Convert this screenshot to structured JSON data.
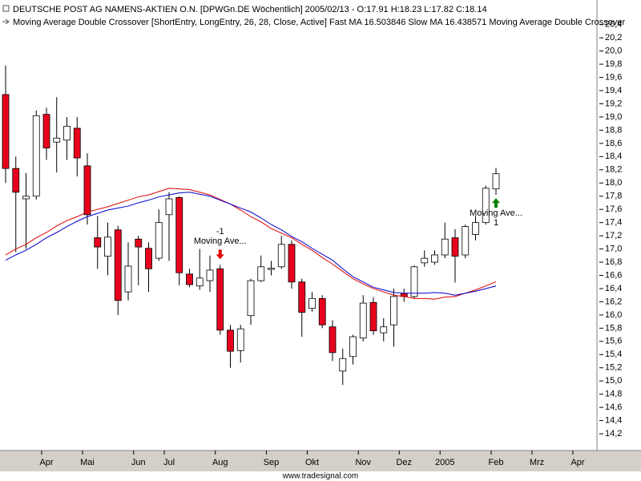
{
  "chart_data": {
    "type": "candlestick",
    "title": "DEUTSCHE POST AG NAMENS-AKTIEN O.N. [DPWGn.DE  Wöchentlich] 2005/02/13 - O:17.91 H:18.23 L:17.82 C:18.14",
    "subtitle": "Moving Average Double Crossover [ShortEntry, LongEntry, 26, 28, Close, Active] Fast MA 16.503846 Slow MA 16.438571 Moving Average Double Crossover",
    "footer": "www.tradesignal.com",
    "categories": [
      null,
      null,
      null,
      null,
      "Apr",
      null,
      null,
      null,
      "Mai",
      null,
      null,
      null,
      null,
      "Jun",
      null,
      null,
      "Jul",
      null,
      null,
      null,
      null,
      "Aug",
      null,
      null,
      null,
      null,
      "Sep",
      null,
      null,
      null,
      "Okt",
      null,
      null,
      null,
      null,
      "Nov",
      null,
      null,
      null,
      "Dez",
      null,
      null,
      null,
      "2005",
      null,
      null,
      null,
      null,
      "Feb",
      null,
      null,
      null,
      "Mrz",
      null,
      null,
      null,
      "Apr",
      null
    ],
    "open": [
      19.34,
      18.22,
      17.76,
      17.8,
      19.04,
      18.62,
      18.65,
      18.83,
      18.26,
      17.17,
      16.89,
      17.29,
      16.35,
      17.15,
      17.01,
      16.86,
      17.52,
      17.78,
      16.62,
      16.44,
      16.52,
      16.7,
      15.77,
      15.46,
      15.99,
      16.52,
      16.69,
      16.73,
      17.07,
      16.5,
      16.1,
      16.25,
      15.82,
      15.15,
      15.37,
      15.65,
      16.19,
      15.73,
      15.85,
      16.33,
      16.28,
      16.79,
      16.8,
      16.91,
      17.17,
      16.91,
      17.22,
      17.4,
      17.91,
      null,
      null,
      null,
      null,
      null,
      null,
      null,
      null,
      null
    ],
    "high": [
      19.78,
      18.4,
      18.15,
      19.1,
      19.14,
      19.3,
      19.0,
      19.0,
      18.45,
      17.5,
      17.4,
      17.35,
      17.1,
      17.2,
      17.1,
      17.6,
      17.86,
      17.8,
      16.7,
      17.0,
      16.9,
      16.76,
      15.85,
      15.85,
      16.55,
      16.9,
      16.82,
      17.2,
      17.13,
      16.55,
      16.35,
      16.3,
      15.92,
      15.49,
      15.7,
      16.3,
      16.27,
      15.95,
      16.4,
      16.4,
      16.75,
      16.98,
      16.98,
      17.4,
      17.3,
      17.37,
      17.5,
      17.96,
      18.23,
      null,
      null,
      null,
      null,
      null,
      null,
      null,
      null,
      null
    ],
    "low": [
      18.0,
      16.95,
      17.0,
      17.75,
      18.35,
      18.16,
      18.35,
      18.1,
      17.37,
      16.7,
      16.6,
      16.0,
      16.22,
      16.45,
      16.35,
      16.82,
      16.82,
      16.45,
      16.42,
      16.38,
      16.35,
      15.7,
      15.2,
      15.28,
      15.85,
      16.5,
      16.6,
      16.7,
      16.4,
      15.67,
      16.05,
      15.8,
      15.3,
      14.94,
      15.25,
      15.6,
      15.7,
      15.6,
      15.52,
      16.2,
      16.25,
      16.73,
      16.76,
      16.86,
      16.49,
      16.86,
      17.13,
      17.37,
      17.82,
      null,
      null,
      null,
      null,
      null,
      null,
      null,
      null,
      null
    ],
    "close": [
      18.22,
      17.86,
      17.8,
      19.02,
      18.53,
      18.68,
      18.86,
      18.38,
      17.52,
      17.03,
      17.18,
      16.22,
      16.74,
      17.03,
      16.7,
      17.4,
      17.76,
      16.64,
      16.46,
      16.56,
      16.68,
      15.77,
      15.45,
      15.79,
      16.52,
      16.73,
      16.71,
      17.07,
      16.5,
      16.04,
      16.25,
      15.85,
      15.43,
      15.34,
      15.67,
      16.18,
      15.76,
      15.82,
      16.28,
      16.28,
      16.73,
      16.86,
      16.91,
      17.15,
      16.89,
      17.34,
      17.4,
      17.92,
      18.14,
      null,
      null,
      null,
      null,
      null,
      null,
      null,
      null,
      null
    ],
    "up_color": "#ffffff",
    "down_color": "#e8001c",
    "series": [
      {
        "color": "#e00000",
        "values": [
          16.91,
          17.0,
          17.07,
          17.17,
          17.25,
          17.35,
          17.43,
          17.49,
          17.56,
          17.6,
          17.64,
          17.69,
          17.74,
          17.79,
          17.82,
          17.87,
          17.92,
          17.91,
          17.9,
          17.86,
          17.82,
          17.75,
          17.68,
          17.59,
          17.49,
          17.41,
          17.31,
          17.24,
          17.17,
          17.07,
          16.98,
          16.87,
          16.77,
          16.66,
          16.55,
          16.47,
          16.4,
          16.35,
          16.3,
          16.28,
          16.25,
          16.25,
          16.24,
          16.27,
          16.28,
          16.33,
          16.38,
          16.44,
          16.503846,
          null,
          null,
          null,
          null,
          null,
          null,
          null,
          null,
          null
        ]
      },
      {
        "color": "#0000cc",
        "values": [
          16.83,
          16.91,
          16.98,
          17.07,
          17.17,
          17.25,
          17.34,
          17.42,
          17.49,
          17.54,
          17.59,
          17.62,
          17.65,
          17.7,
          17.74,
          17.79,
          17.82,
          17.85,
          17.86,
          17.83,
          17.8,
          17.74,
          17.68,
          17.62,
          17.56,
          17.47,
          17.37,
          17.29,
          17.19,
          17.11,
          17.01,
          16.92,
          16.83,
          16.7,
          16.58,
          16.5,
          16.42,
          16.38,
          16.34,
          16.33,
          16.33,
          16.33,
          16.34,
          16.33,
          16.3,
          16.33,
          16.36,
          16.4,
          16.438571,
          null,
          null,
          null,
          null,
          null,
          null,
          null,
          null,
          null
        ]
      }
    ],
    "signals": [
      {
        "label": "Moving Ave...",
        "quantity": "-1",
        "direction": "short"
      },
      {
        "label": "Moving Ave...",
        "quantity": "1",
        "direction": "long"
      }
    ],
    "ylim": [
      13.97,
      20.53
    ],
    "yticks": [
      {
        "value": 14.2,
        "label": "14,2"
      },
      {
        "value": 14.4,
        "label": "14,4"
      },
      {
        "value": 14.6,
        "label": "14,6"
      },
      {
        "value": 14.8,
        "label": "14,8"
      },
      {
        "value": 15.0,
        "label": "15,0"
      },
      {
        "value": 15.2,
        "label": "15,2"
      },
      {
        "value": 15.4,
        "label": "15,4"
      },
      {
        "value": 15.6,
        "label": "15,6"
      },
      {
        "value": 15.8,
        "label": "15,8"
      },
      {
        "value": 16.0,
        "label": "16,0"
      },
      {
        "value": 16.2,
        "label": "16,2"
      },
      {
        "value": 16.4,
        "label": "16,4"
      },
      {
        "value": 16.6,
        "label": "16,6"
      },
      {
        "value": 16.8,
        "label": "16,8"
      },
      {
        "value": 17.0,
        "label": "17,0"
      },
      {
        "value": 17.2,
        "label": "17,2"
      },
      {
        "value": 17.4,
        "label": "17,4"
      },
      {
        "value": 17.6,
        "label": "17,6"
      },
      {
        "value": 17.8,
        "label": "17,8"
      },
      {
        "value": 18.0,
        "label": "18,0"
      },
      {
        "value": 18.2,
        "label": "18,2"
      },
      {
        "value": 18.4,
        "label": "18,4"
      },
      {
        "value": 18.6,
        "label": "18,6"
      },
      {
        "value": 18.8,
        "label": "18,8"
      },
      {
        "value": 19.0,
        "label": "19,0"
      },
      {
        "value": 19.2,
        "label": "19,2"
      },
      {
        "value": 19.4,
        "label": "19,4"
      },
      {
        "value": 19.6,
        "label": "19,6"
      },
      {
        "value": 19.8,
        "label": "19,8"
      },
      {
        "value": 20.0,
        "label": "20,0"
      },
      {
        "value": 20.2,
        "label": "20,2"
      },
      {
        "value": 20.4,
        "label": "20,4"
      }
    ],
    "grid": false
  }
}
